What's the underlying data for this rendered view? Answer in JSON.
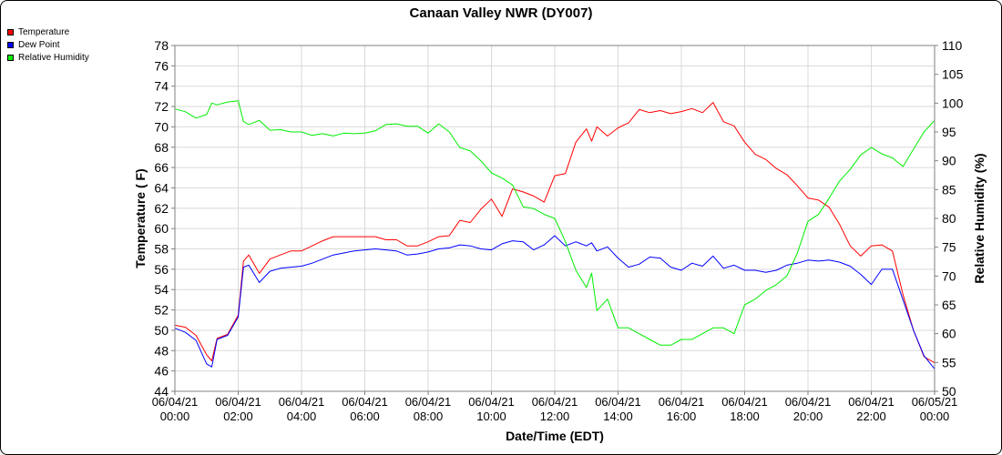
{
  "chart_data": {
    "type": "line",
    "title": "Canaan Valley NWR (DY007)",
    "xlabel": "Date/Time (EDT)",
    "ylabel": "Temperature ( F)",
    "y2label": "Relative Humidity (%)",
    "x_ticks": [
      {
        "date": "06/04/21",
        "time": "00:00"
      },
      {
        "date": "06/04/21",
        "time": "02:00"
      },
      {
        "date": "06/04/21",
        "time": "04:00"
      },
      {
        "date": "06/04/21",
        "time": "06:00"
      },
      {
        "date": "06/04/21",
        "time": "08:00"
      },
      {
        "date": "06/04/21",
        "time": "10:00"
      },
      {
        "date": "06/04/21",
        "time": "12:00"
      },
      {
        "date": "06/04/21",
        "time": "14:00"
      },
      {
        "date": "06/04/21",
        "time": "16:00"
      },
      {
        "date": "06/04/21",
        "time": "18:00"
      },
      {
        "date": "06/04/21",
        "time": "20:00"
      },
      {
        "date": "06/04/21",
        "time": "22:00"
      },
      {
        "date": "06/05/21",
        "time": "00:00"
      }
    ],
    "xlim": [
      "06/04/21 00:00",
      "06/05/21 00:00"
    ],
    "ylim": [
      44,
      78
    ],
    "yticks": [
      44,
      46,
      48,
      50,
      52,
      54,
      56,
      58,
      60,
      62,
      64,
      66,
      68,
      70,
      72,
      74,
      76,
      78
    ],
    "y2lim": [
      50,
      110
    ],
    "y2ticks": [
      50,
      55,
      60,
      65,
      70,
      75,
      80,
      85,
      90,
      95,
      100,
      105,
      110
    ],
    "grid": true,
    "legend_position": "top-left",
    "series": [
      {
        "name": "Temperature",
        "color": "#ff0000",
        "axis": "left",
        "x": [
          "00:00",
          "00:20",
          "00:40",
          "01:00",
          "01:10",
          "01:20",
          "01:40",
          "02:00",
          "02:10",
          "02:20",
          "02:40",
          "03:00",
          "03:20",
          "03:40",
          "04:00",
          "04:20",
          "04:40",
          "05:00",
          "05:20",
          "05:40",
          "06:00",
          "06:20",
          "06:40",
          "07:00",
          "07:20",
          "07:40",
          "08:00",
          "08:20",
          "08:40",
          "09:00",
          "09:20",
          "09:40",
          "10:00",
          "10:20",
          "10:40",
          "11:00",
          "11:20",
          "11:40",
          "12:00",
          "12:20",
          "12:40",
          "13:00",
          "13:10",
          "13:20",
          "13:40",
          "14:00",
          "14:20",
          "14:40",
          "15:00",
          "15:20",
          "15:40",
          "16:00",
          "16:20",
          "16:40",
          "17:00",
          "17:20",
          "17:40",
          "18:00",
          "18:20",
          "18:40",
          "19:00",
          "19:20",
          "19:40",
          "20:00",
          "20:20",
          "20:40",
          "21:00",
          "21:20",
          "21:40",
          "22:00",
          "22:20",
          "22:40",
          "23:00",
          "23:20",
          "23:40",
          "00:00"
        ],
        "values": [
          50.5,
          50.3,
          49.5,
          47.6,
          47.0,
          49.2,
          49.6,
          51.5,
          56.8,
          57.4,
          55.6,
          57.0,
          57.4,
          57.8,
          57.8,
          58.3,
          58.8,
          59.2,
          59.2,
          59.2,
          59.2,
          59.2,
          58.9,
          58.9,
          58.3,
          58.3,
          58.7,
          59.2,
          59.3,
          60.8,
          60.6,
          61.9,
          62.9,
          61.2,
          63.9,
          63.6,
          63.2,
          62.6,
          65.2,
          65.4,
          68.5,
          69.8,
          68.6,
          70.0,
          69.1,
          69.9,
          70.4,
          71.7,
          71.4,
          71.6,
          71.3,
          71.5,
          71.8,
          71.4,
          72.4,
          70.5,
          70.1,
          68.5,
          67.3,
          66.8,
          65.9,
          65.3,
          64.2,
          63.0,
          62.8,
          62.1,
          60.4,
          58.3,
          57.3,
          58.3,
          58.4,
          57.8,
          53.5,
          50.0,
          47.4,
          46.8
        ]
      },
      {
        "name": "Dew Point",
        "color": "#0000ff",
        "axis": "left",
        "x": [
          "00:00",
          "00:20",
          "00:40",
          "01:00",
          "01:10",
          "01:20",
          "01:40",
          "02:00",
          "02:10",
          "02:20",
          "02:40",
          "03:00",
          "03:20",
          "03:40",
          "04:00",
          "04:20",
          "04:40",
          "05:00",
          "05:20",
          "05:40",
          "06:00",
          "06:20",
          "06:40",
          "07:00",
          "07:20",
          "07:40",
          "08:00",
          "08:20",
          "08:40",
          "09:00",
          "09:20",
          "09:40",
          "10:00",
          "10:20",
          "10:40",
          "11:00",
          "11:20",
          "11:40",
          "12:00",
          "12:20",
          "12:40",
          "13:00",
          "13:10",
          "13:20",
          "13:40",
          "14:00",
          "14:20",
          "14:40",
          "15:00",
          "15:20",
          "15:40",
          "16:00",
          "16:20",
          "16:40",
          "17:00",
          "17:20",
          "17:40",
          "18:00",
          "18:20",
          "18:40",
          "19:00",
          "19:20",
          "19:40",
          "20:00",
          "20:20",
          "20:40",
          "21:00",
          "21:20",
          "21:40",
          "22:00",
          "22:20",
          "22:40",
          "23:00",
          "23:20",
          "23:40",
          "00:00"
        ],
        "values": [
          50.2,
          49.8,
          49.0,
          46.7,
          46.4,
          49.1,
          49.5,
          51.3,
          56.2,
          56.4,
          54.7,
          55.8,
          56.1,
          56.2,
          56.3,
          56.6,
          57.0,
          57.4,
          57.6,
          57.8,
          57.9,
          58.0,
          57.9,
          57.8,
          57.4,
          57.5,
          57.7,
          58.0,
          58.1,
          58.4,
          58.3,
          58.0,
          57.9,
          58.5,
          58.8,
          58.7,
          57.9,
          58.4,
          59.3,
          58.3,
          58.7,
          58.3,
          58.6,
          57.8,
          58.2,
          57.1,
          56.2,
          56.5,
          57.2,
          57.1,
          56.2,
          55.9,
          56.6,
          56.3,
          57.3,
          56.1,
          56.4,
          55.9,
          55.9,
          55.7,
          55.9,
          56.4,
          56.6,
          56.9,
          56.8,
          56.9,
          56.7,
          56.3,
          55.5,
          54.5,
          56.0,
          56.0,
          53.0,
          50.0,
          47.5,
          46.2
        ]
      },
      {
        "name": "Relative Humidity",
        "color": "#00ee00",
        "axis": "right",
        "x": [
          "00:00",
          "00:20",
          "00:40",
          "01:00",
          "01:10",
          "01:20",
          "01:40",
          "02:00",
          "02:10",
          "02:20",
          "02:40",
          "03:00",
          "03:20",
          "03:40",
          "04:00",
          "04:20",
          "04:40",
          "05:00",
          "05:20",
          "05:40",
          "06:00",
          "06:20",
          "06:40",
          "07:00",
          "07:20",
          "07:40",
          "08:00",
          "08:20",
          "08:40",
          "09:00",
          "09:20",
          "09:40",
          "10:00",
          "10:20",
          "10:40",
          "11:00",
          "11:20",
          "11:40",
          "12:00",
          "12:20",
          "12:40",
          "13:00",
          "13:10",
          "13:20",
          "13:40",
          "14:00",
          "14:20",
          "14:40",
          "15:00",
          "15:20",
          "15:40",
          "16:00",
          "16:20",
          "16:40",
          "17:00",
          "17:20",
          "17:40",
          "18:00",
          "18:20",
          "18:40",
          "19:00",
          "19:20",
          "19:40",
          "20:00",
          "20:20",
          "20:40",
          "21:00",
          "21:20",
          "21:40",
          "22:00",
          "22:20",
          "22:40",
          "23:00",
          "23:20",
          "23:40",
          "00:00"
        ],
        "values": [
          99,
          98.5,
          97.4,
          98.0,
          100.0,
          99.7,
          100.2,
          100.4,
          96.8,
          96.3,
          97.0,
          95.3,
          95.4,
          95.0,
          95.0,
          94.4,
          94.7,
          94.3,
          94.8,
          94.7,
          94.8,
          95.2,
          96.3,
          96.4,
          96.0,
          96.0,
          94.8,
          96.4,
          95.0,
          92.3,
          91.7,
          90.0,
          87.9,
          87.0,
          85.8,
          82.0,
          81.7,
          80.7,
          80.0,
          76.0,
          71.0,
          68.0,
          70.5,
          64.0,
          66.0,
          61.0,
          61.0,
          60.0,
          59.0,
          58.0,
          58.0,
          59.0,
          59.0,
          60.0,
          61.0,
          61.0,
          60.0,
          65.0,
          66.0,
          67.5,
          68.5,
          70.0,
          74.0,
          79.5,
          80.7,
          83.5,
          86.5,
          88.5,
          91.0,
          92.3,
          91.2,
          90.5,
          89.0,
          92.0,
          95.0,
          97.0
        ]
      }
    ]
  }
}
